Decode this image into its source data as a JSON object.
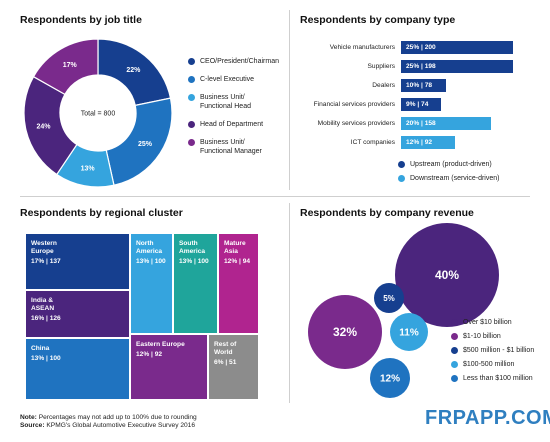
{
  "titles": {
    "job_title": "Respondents by job title",
    "company_type": "Respondents by company type",
    "regional": "Respondents by regional cluster",
    "revenue": "Respondents by company revenue"
  },
  "colors": {
    "dark_blue": "#163f8f",
    "mid_blue": "#1f73c0",
    "light_blue": "#35a4de",
    "purple": "#4b257d",
    "magenta_purple": "#7a2a8c",
    "teal": "#1fa59b",
    "magenta": "#b0248f",
    "gray": "#8c8c8c"
  },
  "chart_data": [
    {
      "type": "pie",
      "variant": "donut",
      "title": "Respondents by job title",
      "center_label": "Total = 800",
      "slices": [
        {
          "label": "CEO/President/Chairman",
          "value": 22,
          "display": "22%",
          "color": "#163f8f"
        },
        {
          "label": "C-level Executive",
          "value": 25,
          "display": "25%",
          "color": "#1f73c0"
        },
        {
          "label": "Business Unit/\nFunctional Head",
          "value": 13,
          "display": "13%",
          "color": "#35a4de"
        },
        {
          "label": "Head of Department",
          "value": 24,
          "display": "24%",
          "color": "#4b257d"
        },
        {
          "label": "Business Unit/\nFunctional Manager",
          "value": 17,
          "display": "17%",
          "color": "#7a2a8c"
        }
      ]
    },
    {
      "type": "bar",
      "orientation": "horizontal",
      "title": "Respondents by company type",
      "categories": [
        "Vehicle manufacturers",
        "Suppliers",
        "Dealers",
        "Financial services providers",
        "Mobility services providers",
        "ICT companies"
      ],
      "values": [
        25,
        25,
        10,
        9,
        20,
        12
      ],
      "labels": [
        "25% | 200",
        "25% | 198",
        "10% | 78",
        "9% | 74",
        "20% | 158",
        "12% | 92"
      ],
      "colors": [
        "#163f8f",
        "#163f8f",
        "#163f8f",
        "#163f8f",
        "#35a4de",
        "#35a4de"
      ],
      "legend": [
        {
          "label": "Upstream (product-driven)",
          "color": "#163f8f"
        },
        {
          "label": "Downstream (service-driven)",
          "color": "#35a4de"
        }
      ]
    },
    {
      "type": "heatmap",
      "variant": "treemap",
      "title": "Respondents by regional cluster",
      "cells": [
        {
          "name": "Western\nEurope",
          "value": "17% | 137",
          "color": "#163f8f"
        },
        {
          "name": "India &\nASEAN",
          "value": "16% | 126",
          "color": "#4b257d"
        },
        {
          "name": "China",
          "value": "13% | 100",
          "color": "#1f73c0"
        },
        {
          "name": "North\nAmerica",
          "value": "13% | 100",
          "color": "#35a4de"
        },
        {
          "name": "South\nAmerica",
          "value": "13% | 100",
          "color": "#1fa59b"
        },
        {
          "name": "Mature\nAsia",
          "value": "12% | 94",
          "color": "#b0248f"
        },
        {
          "name": "Eastern Europe",
          "value": "12% | 92",
          "color": "#7a2a8c"
        },
        {
          "name": "Rest of\nWorld",
          "value": "6% | 51",
          "color": "#8c8c8c"
        }
      ]
    },
    {
      "type": "scatter",
      "variant": "bubble",
      "title": "Respondents by company revenue",
      "bubbles": [
        {
          "label": "Over $10 billion",
          "value": 40,
          "display": "40%",
          "color": "#4b257d"
        },
        {
          "label": "$1-10 billion",
          "value": 32,
          "display": "32%",
          "color": "#7a2a8c"
        },
        {
          "label": "$500 million - $1 billion",
          "value": 5,
          "display": "5%",
          "color": "#163f8f"
        },
        {
          "label": "$100-500 million",
          "value": 11,
          "display": "11%",
          "color": "#35a4de"
        },
        {
          "label": "Less than $100 million",
          "value": 12,
          "display": "12%",
          "color": "#1f73c0"
        }
      ]
    }
  ],
  "footnote": {
    "note_label": "Note:",
    "note_text": "Percentages may not add up to 100% due to rounding",
    "source_label": "Source:",
    "source_text": "KPMG's Global Automotive Executive Survey 2016"
  },
  "watermark": "FRPAPP.COM"
}
